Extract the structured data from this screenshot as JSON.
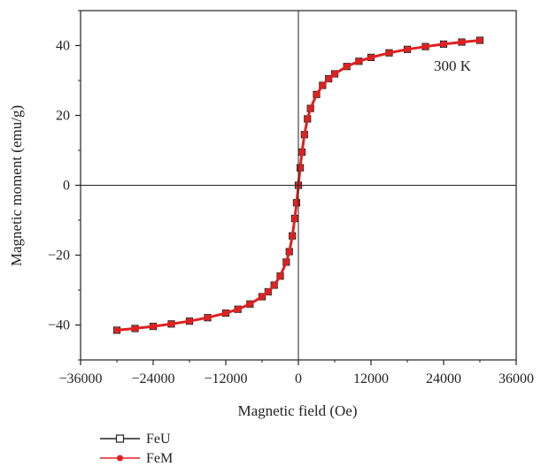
{
  "chart_data": {
    "type": "line",
    "xlabel": "Magnetic field (Oe)",
    "ylabel": "Magnetic moment (emu/g)",
    "xlim": [
      -36000,
      36000
    ],
    "ylim": [
      -50,
      50
    ],
    "xticks": [
      -36000,
      -24000,
      -12000,
      0,
      12000,
      24000,
      36000
    ],
    "yticks": [
      -40,
      -20,
      0,
      20,
      40
    ],
    "xtick_labels": [
      "−36000",
      "−24000",
      "−12000",
      "0",
      "12000",
      "24000",
      "36000"
    ],
    "ytick_labels": [
      "−40",
      "−20",
      "0",
      "20",
      "40"
    ],
    "annotation": "300 K",
    "legend_position": "bottom-left outside",
    "grid": false,
    "zero_lines": true,
    "series": [
      {
        "name": "FeU",
        "color": "#222222",
        "marker": "open-square",
        "x": [
          -30000,
          -27000,
          -24000,
          -21000,
          -18000,
          -15000,
          -12000,
          -10000,
          -8000,
          -6000,
          -5000,
          -4000,
          -3000,
          -2000,
          -1500,
          -1000,
          -600,
          -300,
          0,
          300,
          600,
          1000,
          1500,
          2000,
          3000,
          4000,
          5000,
          6000,
          8000,
          10000,
          12000,
          15000,
          18000,
          21000,
          24000,
          27000,
          30000
        ],
        "y": [
          -41.5,
          -41.0,
          -40.4,
          -39.7,
          -38.9,
          -37.9,
          -36.6,
          -35.5,
          -34.0,
          -31.9,
          -30.5,
          -28.6,
          -26.0,
          -22.0,
          -19.0,
          -14.5,
          -9.5,
          -5.0,
          0,
          5.0,
          9.5,
          14.5,
          19.0,
          22.0,
          26.0,
          28.6,
          30.5,
          31.9,
          34.0,
          35.5,
          36.6,
          37.9,
          38.9,
          39.7,
          40.4,
          41.0,
          41.5
        ]
      },
      {
        "name": "FeM",
        "color": "#e02020",
        "marker": "filled-circle",
        "x": [
          -30000,
          -27000,
          -24000,
          -21000,
          -18000,
          -15000,
          -12000,
          -10000,
          -8000,
          -6000,
          -5000,
          -4000,
          -3000,
          -2000,
          -1500,
          -1000,
          -600,
          -300,
          0,
          300,
          600,
          1000,
          1500,
          2000,
          3000,
          4000,
          5000,
          6000,
          8000,
          10000,
          12000,
          15000,
          18000,
          21000,
          24000,
          27000,
          30000
        ],
        "y": [
          -41.5,
          -41.0,
          -40.4,
          -39.7,
          -38.9,
          -37.9,
          -36.6,
          -35.5,
          -34.0,
          -31.9,
          -30.5,
          -28.6,
          -26.0,
          -22.0,
          -19.0,
          -14.5,
          -9.5,
          -5.0,
          0,
          5.0,
          9.5,
          14.5,
          19.0,
          22.0,
          26.0,
          28.6,
          30.5,
          31.9,
          34.0,
          35.5,
          36.6,
          37.9,
          38.9,
          39.7,
          40.4,
          41.0,
          41.5
        ]
      }
    ]
  }
}
